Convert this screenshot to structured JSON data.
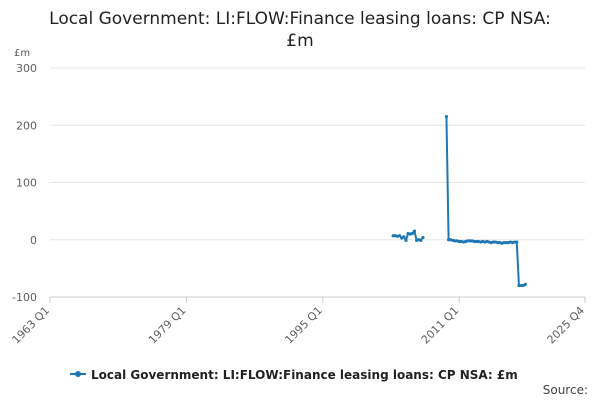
{
  "chart_data": {
    "type": "line",
    "title": "Local Government: LI:FLOW:Finance leasing loans: CP NSA: £m",
    "title_lines": [
      "Local Government: LI:FLOW:Finance leasing loans: CP NSA:",
      "£m"
    ],
    "ylabel": "£m",
    "xlabel": "",
    "ylim": [
      -100,
      300
    ],
    "yticks": [
      -100,
      0,
      100,
      200,
      300
    ],
    "xlim": [
      1963.0,
      2025.75
    ],
    "xticks": [
      {
        "value": 1963.0,
        "label": "1963 Q1"
      },
      {
        "value": 1979.0,
        "label": "1979 Q1"
      },
      {
        "value": 1995.0,
        "label": "1995 Q1"
      },
      {
        "value": 2011.0,
        "label": "2011 Q1"
      },
      {
        "value": 2025.75,
        "label": "2025 Q4"
      }
    ],
    "grid": true,
    "legend_position": "bottom",
    "source_label": "Source:",
    "colors": {
      "line": "#1f77b4",
      "axis": "#cccccc",
      "grid": "#e6e6e6"
    },
    "series": [
      {
        "name": "Local Government: LI:FLOW:Finance leasing loans: CP NSA: £m",
        "segments": [
          [
            [
              2003.25,
              7
            ],
            [
              2003.5,
              7
            ],
            [
              2003.75,
              6
            ],
            [
              2004.0,
              7
            ],
            [
              2004.25,
              3
            ],
            [
              2004.5,
              5
            ],
            [
              2004.75,
              -1
            ],
            [
              2005.0,
              11
            ],
            [
              2005.25,
              10
            ],
            [
              2005.5,
              11
            ],
            [
              2005.75,
              15
            ],
            [
              2006.0,
              -1
            ],
            [
              2006.25,
              0
            ],
            [
              2006.5,
              -1
            ],
            [
              2006.75,
              4
            ]
          ],
          [
            [
              2009.5,
              215
            ],
            [
              2009.75,
              0
            ],
            [
              2010.0,
              0
            ],
            [
              2010.25,
              -1
            ],
            [
              2010.5,
              -2
            ],
            [
              2010.75,
              -2
            ],
            [
              2011.0,
              -3
            ],
            [
              2011.25,
              -3
            ],
            [
              2011.5,
              -4
            ],
            [
              2011.75,
              -3
            ],
            [
              2012.0,
              -2
            ],
            [
              2012.25,
              -2
            ],
            [
              2012.5,
              -2
            ],
            [
              2012.75,
              -3
            ],
            [
              2013.0,
              -3
            ],
            [
              2013.25,
              -3
            ],
            [
              2013.5,
              -4
            ],
            [
              2013.75,
              -3
            ],
            [
              2014.0,
              -4
            ],
            [
              2014.25,
              -3
            ],
            [
              2014.5,
              -4
            ],
            [
              2014.75,
              -5
            ],
            [
              2015.0,
              -4
            ],
            [
              2015.25,
              -4
            ],
            [
              2015.5,
              -5
            ],
            [
              2015.75,
              -5
            ],
            [
              2016.0,
              -6
            ],
            [
              2016.25,
              -5
            ],
            [
              2016.5,
              -5
            ],
            [
              2016.75,
              -5
            ],
            [
              2017.0,
              -4
            ],
            [
              2017.25,
              -5
            ],
            [
              2017.5,
              -4
            ],
            [
              2017.75,
              -4
            ],
            [
              2018.0,
              -80
            ],
            [
              2018.25,
              -80
            ],
            [
              2018.5,
              -80
            ],
            [
              2018.75,
              -78
            ]
          ]
        ]
      }
    ]
  }
}
